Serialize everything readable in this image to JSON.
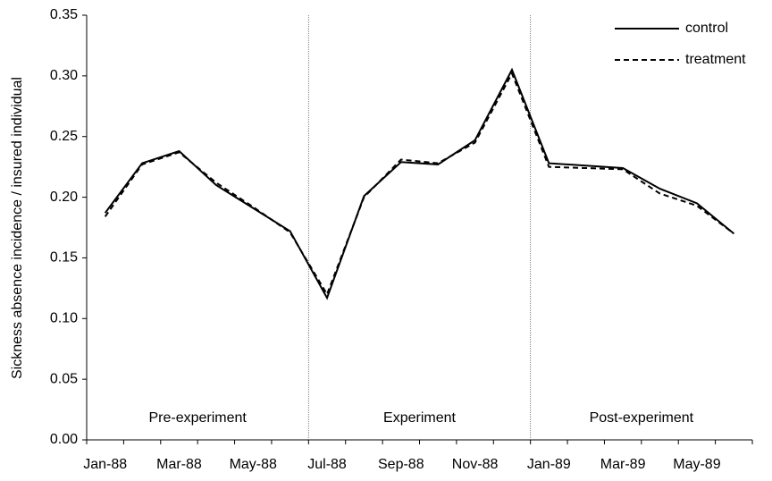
{
  "chart_data": {
    "type": "line",
    "y_label": "Sickness absence incidence / insured individual",
    "categories": [
      "Jan-88",
      null,
      "Mar-88",
      null,
      "May-88",
      null,
      "Jul-88",
      null,
      "Sep-88",
      null,
      "Nov-88",
      null,
      "Jan-89",
      null,
      "Mar-89",
      null,
      "May-89",
      null
    ],
    "series": [
      {
        "name": "control",
        "color": "#000000",
        "dash": "solid",
        "values": [
          0.187,
          0.228,
          0.238,
          0.21,
          0.191,
          0.172,
          0.117,
          0.201,
          0.229,
          0.227,
          0.247,
          0.305,
          0.228,
          0.226,
          0.224,
          0.207,
          0.195,
          0.17
        ]
      },
      {
        "name": "treatment",
        "color": "#000000",
        "dash": "dashed",
        "values": [
          0.184,
          0.227,
          0.237,
          0.212,
          0.192,
          0.171,
          0.12,
          0.2,
          0.231,
          0.228,
          0.245,
          0.302,
          0.225,
          0.224,
          0.223,
          0.203,
          0.193,
          0.17
        ]
      }
    ],
    "periods": [
      "Pre-experiment",
      "Experiment",
      "Post-experiment"
    ],
    "ylim": [
      0,
      0.35
    ],
    "yticks": [
      {
        "value": 0,
        "label": "0.00"
      },
      {
        "value": 0.05,
        "label": "0.05"
      },
      {
        "value": 0.1,
        "label": "0.10"
      },
      {
        "value": 0.15,
        "label": "0.15"
      },
      {
        "value": 0.2,
        "label": "0.20"
      },
      {
        "value": 0.25,
        "label": "0.25"
      },
      {
        "value": 0.3,
        "label": "0.30"
      },
      {
        "value": 0.35,
        "label": "0.35"
      }
    ],
    "legend": "top-right",
    "grid": false
  }
}
